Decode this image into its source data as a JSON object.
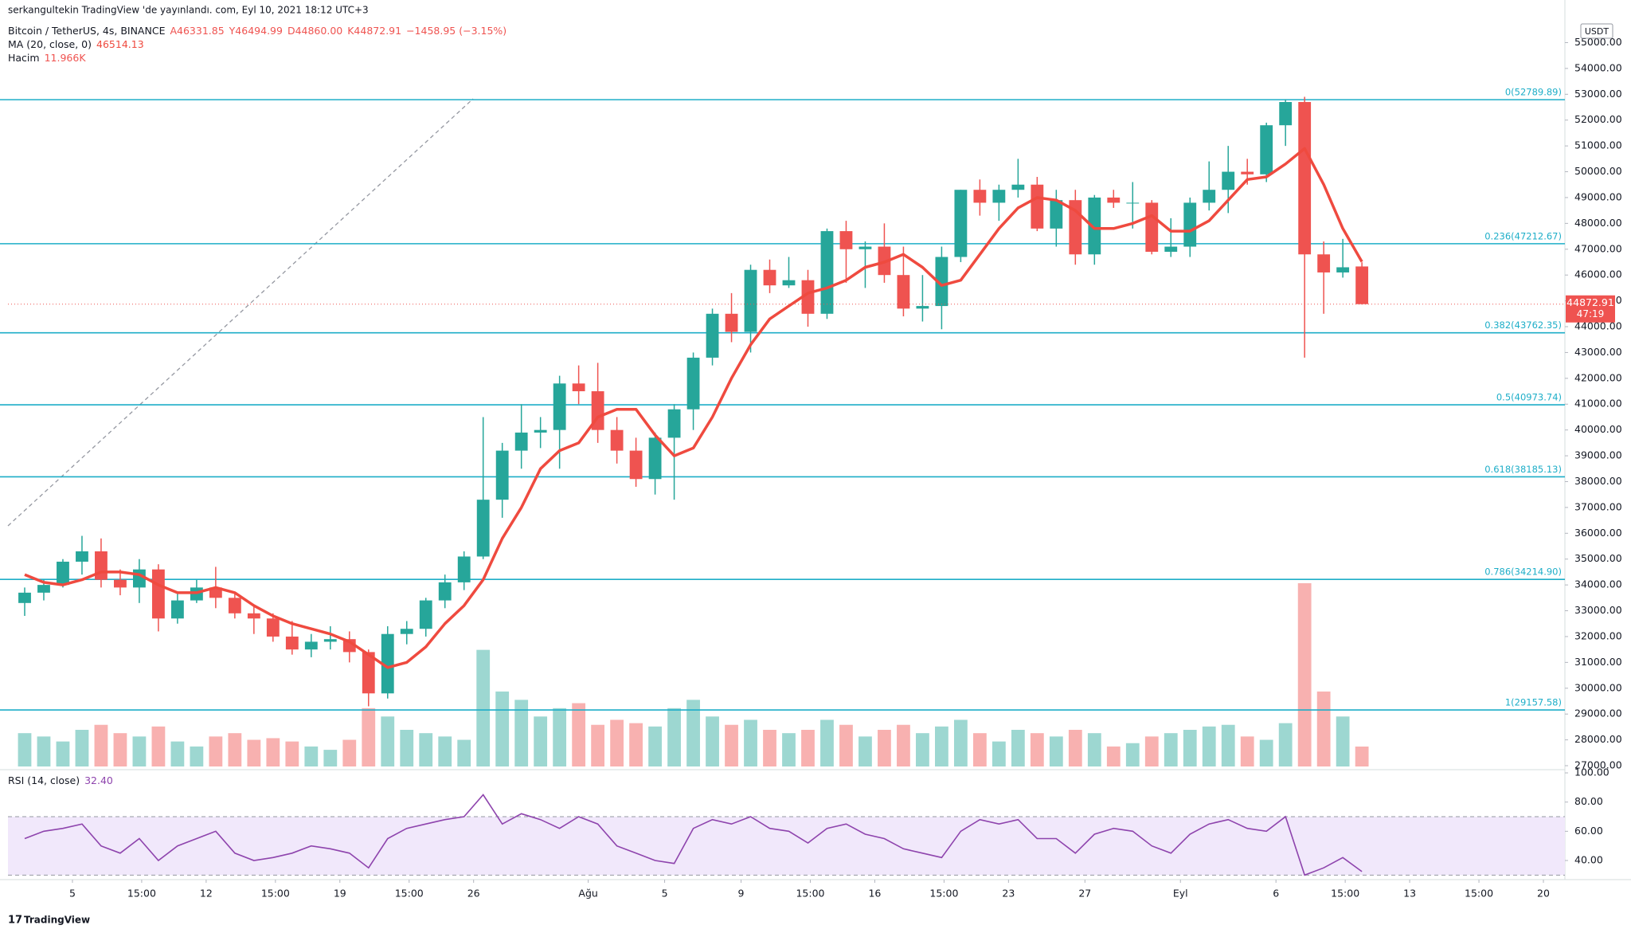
{
  "chart_data": {
    "type": "candlestick",
    "header": {
      "published": "serkangultekin TradingView 'de yayınlandı. com, Eyl 10, 2021 18:12 UTC+3",
      "symbol": "Bitcoin / TetherUS, 4s, BINANCE",
      "ohlc": [
        "A46331.85",
        "Y46494.99",
        "D44860.00",
        "K44872.91",
        "−1458.95 (−3.15%)"
      ],
      "ma_label": "MA (20, close, 0)",
      "ma_value": "46514.13",
      "volume_label": "Hacim",
      "volume_value": "11.966K",
      "rsi_label": "RSI (14, close)",
      "rsi_value": "32.40",
      "currency": "USDT",
      "countdown": "47:19",
      "logo": "TradingView"
    },
    "x": [
      "07-02",
      "07-03",
      "07-04",
      "07-05",
      "07-06",
      "07-07",
      "07-08",
      "07-09",
      "07-10",
      "07-11",
      "07-12",
      "07-13",
      "07-14",
      "07-15",
      "07-16",
      "07-17",
      "07-18",
      "07-19",
      "07-20",
      "07-21",
      "07-22",
      "07-23",
      "07-24",
      "07-25",
      "07-26",
      "07-27",
      "07-28",
      "07-29",
      "07-30",
      "07-31",
      "08-01",
      "08-02",
      "08-03",
      "08-04",
      "08-05",
      "08-06",
      "08-07",
      "08-08",
      "08-09",
      "08-10",
      "08-11",
      "08-12",
      "08-13",
      "08-14",
      "08-15",
      "08-16",
      "08-17",
      "08-18",
      "08-19",
      "08-20",
      "08-21",
      "08-22",
      "08-23",
      "08-24",
      "08-25",
      "08-26",
      "08-27",
      "08-28",
      "08-29",
      "08-30",
      "08-31",
      "09-01",
      "09-02",
      "09-03",
      "09-04",
      "09-05",
      "09-06",
      "09-07",
      "09-08",
      "09-09",
      "09-10"
    ],
    "candles": [
      [
        33300,
        33900,
        32800,
        33700
      ],
      [
        33700,
        34200,
        33400,
        34000
      ],
      [
        34000,
        35000,
        33900,
        34900
      ],
      [
        34900,
        35900,
        34400,
        35300
      ],
      [
        35300,
        35800,
        33900,
        34200
      ],
      [
        34200,
        34600,
        33600,
        33900
      ],
      [
        33900,
        35000,
        33300,
        34600
      ],
      [
        34600,
        34800,
        32200,
        32700
      ],
      [
        32700,
        33700,
        32500,
        33400
      ],
      [
        33400,
        34200,
        33300,
        33900
      ],
      [
        33900,
        34700,
        33100,
        33500
      ],
      [
        33500,
        33700,
        32700,
        32900
      ],
      [
        32900,
        33200,
        32100,
        32700
      ],
      [
        32700,
        32900,
        31800,
        32000
      ],
      [
        32000,
        32600,
        31300,
        31500
      ],
      [
        31500,
        32100,
        31200,
        31800
      ],
      [
        31800,
        32400,
        31500,
        31900
      ],
      [
        31900,
        32200,
        31000,
        31400
      ],
      [
        31400,
        31500,
        29300,
        29800
      ],
      [
        29800,
        32400,
        29600,
        32100
      ],
      [
        32100,
        32600,
        31700,
        32300
      ],
      [
        32300,
        33500,
        32000,
        33400
      ],
      [
        33400,
        34400,
        33100,
        34100
      ],
      [
        34100,
        35300,
        33800,
        35100
      ],
      [
        35100,
        40500,
        35000,
        37300
      ],
      [
        37300,
        39500,
        36600,
        39200
      ],
      [
        39200,
        41000,
        38500,
        39900
      ],
      [
        39900,
        40500,
        39300,
        40000
      ],
      [
        40000,
        42100,
        38500,
        41800
      ],
      [
        41800,
        42500,
        41000,
        41500
      ],
      [
        41500,
        42600,
        39500,
        40000
      ],
      [
        40000,
        40500,
        38700,
        39200
      ],
      [
        39200,
        39700,
        37800,
        38100
      ],
      [
        38100,
        39900,
        37500,
        39700
      ],
      [
        39700,
        41000,
        37300,
        40800
      ],
      [
        40800,
        43000,
        40000,
        42800
      ],
      [
        42800,
        44700,
        42500,
        44500
      ],
      [
        44500,
        45300,
        43400,
        43800
      ],
      [
        43800,
        46400,
        43000,
        46200
      ],
      [
        46200,
        46600,
        45300,
        45600
      ],
      [
        45600,
        46700,
        45500,
        45800
      ],
      [
        45800,
        46200,
        44000,
        44500
      ],
      [
        44500,
        47800,
        44300,
        47700
      ],
      [
        47700,
        48100,
        45700,
        47000
      ],
      [
        47000,
        47300,
        45500,
        47100
      ],
      [
        47100,
        48000,
        45700,
        46000
      ],
      [
        46000,
        47100,
        44400,
        44700
      ],
      [
        44700,
        46000,
        44200,
        44800
      ],
      [
        44800,
        47100,
        43900,
        46700
      ],
      [
        46700,
        49300,
        46500,
        49300
      ],
      [
        49300,
        49700,
        48300,
        48800
      ],
      [
        48800,
        49500,
        48100,
        49300
      ],
      [
        49300,
        50500,
        49000,
        49500
      ],
      [
        49500,
        49800,
        47700,
        47800
      ],
      [
        47800,
        49300,
        47100,
        48900
      ],
      [
        48900,
        49300,
        46400,
        46800
      ],
      [
        46800,
        49100,
        46400,
        49000
      ],
      [
        49000,
        49300,
        48600,
        48800
      ],
      [
        48800,
        49600,
        47800,
        48800
      ],
      [
        48800,
        48900,
        46800,
        46900
      ],
      [
        46900,
        48200,
        46700,
        47100
      ],
      [
        47100,
        49000,
        46700,
        48800
      ],
      [
        48800,
        50400,
        48500,
        49300
      ],
      [
        49300,
        51000,
        48400,
        50000
      ],
      [
        50000,
        50500,
        49500,
        49900
      ],
      [
        49900,
        51900,
        49600,
        51800
      ],
      [
        51800,
        52800,
        51000,
        52700
      ],
      [
        52700,
        52900,
        42800,
        46800
      ],
      [
        46800,
        47300,
        44500,
        46100
      ],
      [
        46100,
        47400,
        45900,
        46300
      ],
      [
        46331.85,
        46494.99,
        44860,
        44872.91
      ]
    ],
    "up_color": "#26a69a",
    "down_color": "#ef5350",
    "ma": {
      "name": "MA (20, close, 0)",
      "color": "#ef4a3f",
      "values": [
        34400,
        34100,
        34000,
        34200,
        34500,
        34500,
        34400,
        34000,
        33700,
        33700,
        33900,
        33700,
        33200,
        32800,
        32500,
        32300,
        32100,
        31800,
        31300,
        30800,
        31000,
        31600,
        32500,
        33200,
        34200,
        35800,
        37000,
        38500,
        39200,
        39500,
        40500,
        40800,
        40800,
        39800,
        39000,
        39300,
        40500,
        42000,
        43300,
        44300,
        44800,
        45300,
        45500,
        45800,
        46300,
        46500,
        46800,
        46300,
        45600,
        45800,
        46800,
        47800,
        48600,
        49000,
        48900,
        48500,
        47800,
        47800,
        48000,
        48300,
        47700,
        47700,
        48100,
        48900,
        49700,
        49800,
        50300,
        50900,
        49500,
        47800,
        46514.13
      ]
    },
    "volume": {
      "name": "Hacim",
      "values": [
        20,
        18,
        15,
        22,
        25,
        20,
        18,
        24,
        15,
        12,
        18,
        20,
        16,
        17,
        15,
        12,
        10,
        16,
        35,
        30,
        22,
        20,
        18,
        16,
        70,
        45,
        40,
        30,
        35,
        38,
        25,
        28,
        26,
        24,
        35,
        40,
        30,
        25,
        28,
        22,
        20,
        22,
        28,
        25,
        18,
        22,
        25,
        20,
        24,
        28,
        20,
        15,
        22,
        20,
        18,
        22,
        20,
        12,
        14,
        18,
        20,
        22,
        24,
        25,
        18,
        16,
        26,
        110,
        45,
        30,
        11.966
      ]
    },
    "rsi": {
      "name": "RSI (14, close)",
      "color": "#8e44ad",
      "band_color": "#f1e8fb",
      "band": [
        30,
        70
      ],
      "ylim": [
        26.9,
        102.2
      ],
      "yticks": [
        {
          "value": 40,
          "label": "40.00"
        },
        {
          "value": 60,
          "label": "60.00"
        },
        {
          "value": 80,
          "label": "80.00"
        },
        {
          "value": 100,
          "label": "100.00"
        }
      ],
      "values": [
        55,
        60,
        62,
        65,
        50,
        45,
        55,
        40,
        50,
        55,
        60,
        45,
        40,
        42,
        45,
        50,
        48,
        45,
        35,
        55,
        62,
        65,
        68,
        70,
        85,
        65,
        72,
        68,
        62,
        70,
        65,
        50,
        45,
        40,
        38,
        62,
        68,
        65,
        70,
        62,
        60,
        52,
        62,
        65,
        58,
        55,
        48,
        45,
        42,
        60,
        68,
        65,
        68,
        55,
        55,
        45,
        58,
        62,
        60,
        50,
        45,
        58,
        65,
        68,
        62,
        60,
        70,
        30,
        35,
        42,
        32.4
      ]
    },
    "fib_color": "#1eaec8",
    "fib": [
      {
        "value": 52789.89,
        "label": "0(52789.89)"
      },
      {
        "value": 47212.67,
        "label": "0.236(47212.67)"
      },
      {
        "value": 43762.35,
        "label": "0.382(43762.35)"
      },
      {
        "value": 40973.74,
        "label": "0.5(40973.74)"
      },
      {
        "value": 38185.13,
        "label": "0.618(38185.13)"
      },
      {
        "value": 34214.9,
        "label": "0.786(34214.90)"
      },
      {
        "value": 29157.58,
        "label": "1(29157.58)"
      }
    ],
    "xlim": [
      "07-01 15:00",
      "09-21 03:00"
    ],
    "xticks": [
      {
        "value": "07-05",
        "label": "5"
      },
      {
        "value": "07-08 15:00",
        "label": "15:00"
      },
      {
        "value": "07-12",
        "label": "12"
      },
      {
        "value": "07-15 15:00",
        "label": "15:00"
      },
      {
        "value": "07-19",
        "label": "19"
      },
      {
        "value": "07-22 15:00",
        "label": "15:00"
      },
      {
        "value": "07-26",
        "label": "26"
      },
      {
        "value": "08-01",
        "label": "Ağu"
      },
      {
        "value": "08-05",
        "label": "5"
      },
      {
        "value": "08-09",
        "label": "9"
      },
      {
        "value": "08-12 15:00",
        "label": "15:00"
      },
      {
        "value": "08-16",
        "label": "16"
      },
      {
        "value": "08-19 15:00",
        "label": "15:00"
      },
      {
        "value": "08-23",
        "label": "23"
      },
      {
        "value": "08-27",
        "label": "27"
      },
      {
        "value": "09-01",
        "label": "Eyl"
      },
      {
        "value": "09-06",
        "label": "6"
      },
      {
        "value": "09-09 15:00",
        "label": "15:00"
      },
      {
        "value": "09-13",
        "label": "13"
      },
      {
        "value": "09-16 15:00",
        "label": "15:00"
      },
      {
        "value": "09-20",
        "label": "20"
      }
    ],
    "ylim": [
      26846,
      55848
    ],
    "yticks": [
      {
        "value": 27000,
        "label": "27000.00"
      },
      {
        "value": 28000,
        "label": "28000.00"
      },
      {
        "value": 29000,
        "label": "29000.00"
      },
      {
        "value": 30000,
        "label": "30000.00"
      },
      {
        "value": 31000,
        "label": "31000.00"
      },
      {
        "value": 32000,
        "label": "32000.00"
      },
      {
        "value": 33000,
        "label": "33000.00"
      },
      {
        "value": 34000,
        "label": "34000.00"
      },
      {
        "value": 35000,
        "label": "35000.00"
      },
      {
        "value": 36000,
        "label": "36000.00"
      },
      {
        "value": 37000,
        "label": "37000.00"
      },
      {
        "value": 38000,
        "label": "38000.00"
      },
      {
        "value": 39000,
        "label": "39000.00"
      },
      {
        "value": 40000,
        "label": "40000.00"
      },
      {
        "value": 41000,
        "label": "41000.00"
      },
      {
        "value": 42000,
        "label": "42000.00"
      },
      {
        "value": 43000,
        "label": "43000.00"
      },
      {
        "value": 44000,
        "label": "44000.00"
      },
      {
        "value": 45000,
        "label": "45000.00"
      },
      {
        "value": 46000,
        "label": "46000.00"
      },
      {
        "value": 47000,
        "label": "47000.00"
      },
      {
        "value": 48000,
        "label": "48000.00"
      },
      {
        "value": 49000,
        "label": "49000.00"
      },
      {
        "value": 50000,
        "label": "50000.00"
      },
      {
        "value": 51000,
        "label": "51000.00"
      },
      {
        "value": 52000,
        "label": "52000.00"
      },
      {
        "value": 53000,
        "label": "53000.00"
      },
      {
        "value": 54000,
        "label": "54000.00"
      },
      {
        "value": 55000,
        "label": "55000.00"
      }
    ]
  }
}
